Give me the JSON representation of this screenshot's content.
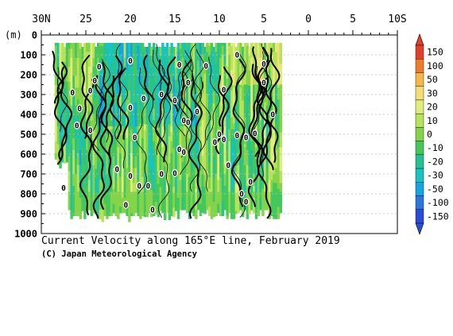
{
  "chart_data": {
    "type": "heatmap",
    "title": "Current Velocity along 165°E line, February 2019",
    "credit": "(C) Japan Meteorological Agency",
    "y_unit_label": "(m)",
    "x_ticks": [
      "30N",
      "25",
      "20",
      "15",
      "10",
      "5",
      "0",
      "5",
      "10S"
    ],
    "x_tick_values": [
      30,
      25,
      20,
      15,
      10,
      5,
      0,
      -5,
      -10
    ],
    "xlim": [
      30,
      -10
    ],
    "y_ticks": [
      0,
      100,
      200,
      300,
      400,
      500,
      600,
      700,
      800,
      900,
      1000
    ],
    "ylim": [
      0,
      1000
    ],
    "y_inverted": true,
    "data_lat_range": [
      28.5,
      3
    ],
    "data_depth_range": [
      40,
      930
    ],
    "colorbar": {
      "labels": [
        "150",
        "100",
        "50",
        "30",
        "20",
        "10",
        "0",
        "-10",
        "-20",
        "-30",
        "-50",
        "-100",
        "-150"
      ],
      "colors": [
        "#e2402a",
        "#f07d28",
        "#f7b646",
        "#f6df72",
        "#e1ed7a",
        "#b8e25a",
        "#84d44a",
        "#44c85c",
        "#24c294",
        "#17c4c4",
        "#14a6e2",
        "#2a76e0",
        "#2b4cd6"
      ]
    },
    "zero_contour_labels": [
      {
        "lat": 26.5,
        "depth": 290
      },
      {
        "lat": 25.7,
        "depth": 370
      },
      {
        "lat": 26.0,
        "depth": 455
      },
      {
        "lat": 24.5,
        "depth": 280
      },
      {
        "lat": 24.0,
        "depth": 230
      },
      {
        "lat": 23.5,
        "depth": 160
      },
      {
        "lat": 24.5,
        "depth": 480
      },
      {
        "lat": 20.0,
        "depth": 130
      },
      {
        "lat": 20.0,
        "depth": 365
      },
      {
        "lat": 18.5,
        "depth": 320
      },
      {
        "lat": 16.5,
        "depth": 300
      },
      {
        "lat": 15.0,
        "depth": 330
      },
      {
        "lat": 14.5,
        "depth": 150
      },
      {
        "lat": 13.5,
        "depth": 240
      },
      {
        "lat": 12.5,
        "depth": 385
      },
      {
        "lat": 11.5,
        "depth": 155
      },
      {
        "lat": 9.5,
        "depth": 275
      },
      {
        "lat": 8.0,
        "depth": 100
      },
      {
        "lat": 5.0,
        "depth": 145
      },
      {
        "lat": 5.0,
        "depth": 240
      },
      {
        "lat": 4.0,
        "depth": 400
      },
      {
        "lat": 14.0,
        "depth": 430
      },
      {
        "lat": 13.5,
        "depth": 440
      },
      {
        "lat": 19.5,
        "depth": 515
      },
      {
        "lat": 10.0,
        "depth": 500
      },
      {
        "lat": 10.5,
        "depth": 540
      },
      {
        "lat": 9.5,
        "depth": 525
      },
      {
        "lat": 8.0,
        "depth": 505
      },
      {
        "lat": 7.0,
        "depth": 515
      },
      {
        "lat": 6.0,
        "depth": 495
      },
      {
        "lat": 14.5,
        "depth": 575
      },
      {
        "lat": 14.0,
        "depth": 590
      },
      {
        "lat": 21.5,
        "depth": 675
      },
      {
        "lat": 20.0,
        "depth": 710
      },
      {
        "lat": 19.0,
        "depth": 760
      },
      {
        "lat": 18.0,
        "depth": 760
      },
      {
        "lat": 16.5,
        "depth": 700
      },
      {
        "lat": 15.0,
        "depth": 695
      },
      {
        "lat": 9.0,
        "depth": 655
      },
      {
        "lat": 6.5,
        "depth": 740
      },
      {
        "lat": 7.5,
        "depth": 800
      },
      {
        "lat": 27.5,
        "depth": 770
      },
      {
        "lat": 20.5,
        "depth": 855
      },
      {
        "lat": 17.5,
        "depth": 880
      },
      {
        "lat": 7.0,
        "depth": 840
      }
    ],
    "grid": true
  }
}
